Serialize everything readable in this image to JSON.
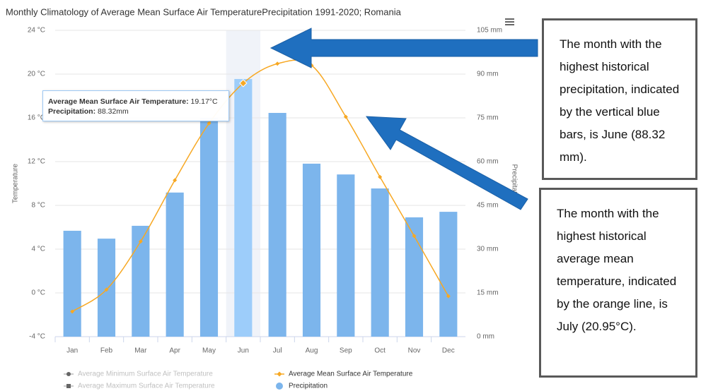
{
  "chart_data": {
    "type": "bar_line",
    "title": "Monthly Climatology of Average Mean Surface Air TemperaturePrecipitation 1991-2020; Romania",
    "y_label": "Temperature",
    "y2_label": "Precipitation",
    "categories": [
      "Jan",
      "Feb",
      "Mar",
      "Apr",
      "May",
      "Jun",
      "Jul",
      "Aug",
      "Sep",
      "Oct",
      "Nov",
      "Dec"
    ],
    "series": [
      {
        "name": "Precipitation",
        "type": "bar",
        "axis": "y2",
        "color": "#7cb5ec",
        "values": [
          36.3,
          33.6,
          38.0,
          49.4,
          75.0,
          88.32,
          76.7,
          59.3,
          55.6,
          50.8,
          40.9,
          42.8
        ]
      },
      {
        "name": "Average Mean Surface Air Temperature",
        "type": "line",
        "axis": "y",
        "color": "#f7a823",
        "values": [
          -1.7,
          0.3,
          4.7,
          10.3,
          15.5,
          19.17,
          20.95,
          20.8,
          16.1,
          10.6,
          5.2,
          -0.3
        ]
      }
    ],
    "legend": [
      {
        "name": "Average Minimum Surface Air Temperature",
        "color": "#bbbbbb",
        "active": false,
        "marker": "circle"
      },
      {
        "name": "Average Mean Surface Air Temperature",
        "color": "#f7a823",
        "active": true,
        "marker": "diamond"
      },
      {
        "name": "Average Maximum Surface Air Temperature",
        "color": "#bbbbbb",
        "active": false,
        "marker": "square"
      },
      {
        "name": "Precipitation",
        "color": "#7cb5ec",
        "active": true,
        "marker": "dot"
      }
    ],
    "ylim": [
      -4,
      24
    ],
    "yticks": [
      {
        "value": -4,
        "label": "-4 °C"
      },
      {
        "value": 0,
        "label": "0 °C"
      },
      {
        "value": 4,
        "label": "4 °C"
      },
      {
        "value": 8,
        "label": "8 °C"
      },
      {
        "value": 12,
        "label": "12 °C"
      },
      {
        "value": 16,
        "label": "16 °C"
      },
      {
        "value": 20,
        "label": "20 °C"
      },
      {
        "value": 24,
        "label": "24 °C"
      }
    ],
    "y2lim": [
      0,
      105
    ],
    "y2ticks": [
      {
        "value": 0,
        "label": "0 mm"
      },
      {
        "value": 15,
        "label": "15 mm"
      },
      {
        "value": 30,
        "label": "30 mm"
      },
      {
        "value": 45,
        "label": "45 mm"
      },
      {
        "value": 60,
        "label": "60 mm"
      },
      {
        "value": 75,
        "label": "75 mm"
      },
      {
        "value": 90,
        "label": "90 mm"
      },
      {
        "value": 105,
        "label": "105 mm"
      }
    ],
    "grid": true,
    "highlight_index": 5,
    "tooltip": {
      "lines": [
        {
          "label": "Average Mean Surface Air Temperature:",
          "value": "19.17°C"
        },
        {
          "label": "Precipitation:",
          "value": "88.32mm"
        }
      ]
    },
    "annotations": [
      "The month with the highest historical precipitation, indicated by the vertical blue bars, is June (88.32 mm).",
      "The month with the highest historical average mean temperature, indicated by the orange line, is July (20.95°C)."
    ]
  }
}
